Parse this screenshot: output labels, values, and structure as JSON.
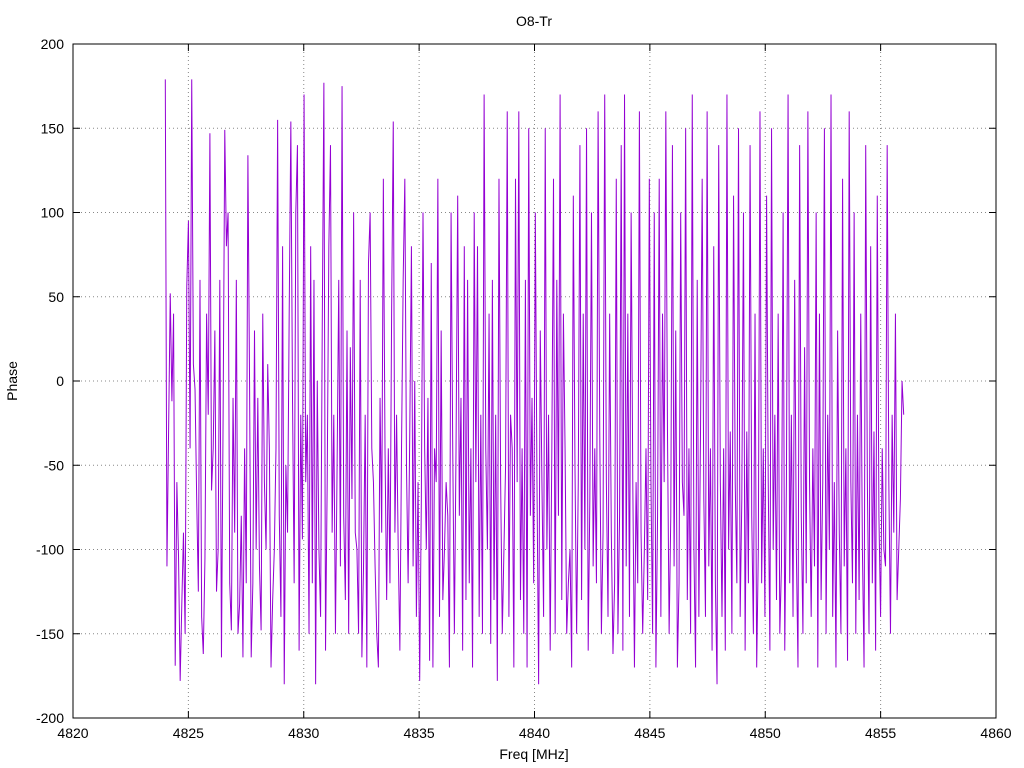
{
  "chart_data": {
    "type": "line",
    "title": "O8-Tr",
    "xlabel": "Freq [MHz]",
    "ylabel": "Phase",
    "xlim": [
      4820,
      4860
    ],
    "ylim": [
      -200,
      200
    ],
    "x_ticks": [
      4820,
      4825,
      4830,
      4835,
      4840,
      4845,
      4850,
      4855,
      4860
    ],
    "y_ticks": [
      -200,
      -150,
      -100,
      -50,
      0,
      50,
      100,
      150,
      200
    ],
    "grid": true,
    "series_color": "#9400D3",
    "series": [
      {
        "x_start": 4824.0,
        "x_end": 4856.0,
        "values": [
          179,
          -110,
          -29,
          52,
          -12,
          40,
          -169,
          -60,
          -104,
          -178,
          -132,
          -90,
          -150,
          56,
          95,
          -40,
          179,
          10,
          -5,
          -70,
          -125,
          60,
          -140,
          -162,
          -105,
          40,
          -20,
          147,
          -65,
          -40,
          30,
          -125,
          -100,
          60,
          -164,
          -20,
          149,
          80,
          100,
          -120,
          -148,
          -10,
          -90,
          60,
          -150,
          -132,
          -80,
          -164,
          -40,
          -120,
          134,
          0,
          -164,
          -120,
          30,
          -100,
          -10,
          -110,
          -148,
          40,
          -60,
          -100,
          10,
          -40,
          -170,
          -130,
          -100,
          -40,
          155,
          -80,
          -140,
          80,
          -180,
          -50,
          -90,
          40,
          154,
          -10,
          -120,
          100,
          140,
          -160,
          -20,
          -94,
          170,
          -60,
          -20,
          -150,
          80,
          -120,
          60,
          -180,
          0,
          -100,
          -140,
          30,
          177,
          -160,
          -60,
          80,
          140,
          -90,
          -20,
          -150,
          -50,
          60,
          -110,
          175,
          -80,
          -130,
          30,
          -150,
          20,
          -70,
          100,
          -90,
          -100,
          -150,
          60,
          -164,
          -110,
          -20,
          -170,
          70,
          100,
          -40,
          -60,
          -110,
          -150,
          -170,
          -10,
          -90,
          120,
          -40,
          -130,
          -40,
          -120,
          40,
          154,
          -90,
          -20,
          -100,
          -160,
          -40,
          60,
          120,
          -50,
          -120,
          -30,
          80,
          -110,
          0,
          -140,
          -60,
          -178,
          -70,
          100,
          -40,
          -100,
          -10,
          -166,
          70,
          -170,
          -40,
          -60,
          120,
          -140,
          30,
          -130,
          -100,
          -60,
          -80,
          -170,
          100,
          -40,
          -150,
          -40,
          110,
          -80,
          -10,
          -160,
          80,
          -130,
          60,
          -120,
          -40,
          -170,
          100,
          -60,
          80,
          -140,
          -20,
          -150,
          170,
          -40,
          -100,
          40,
          -156,
          60,
          -130,
          -20,
          -178,
          120,
          -60,
          -150,
          -100,
          -50,
          160,
          -140,
          -20,
          -40,
          -170,
          120,
          -60,
          160,
          -130,
          -40,
          -150,
          60,
          -170,
          150,
          -80,
          -10,
          -120,
          100,
          -60,
          -180,
          30,
          -60,
          -140,
          150,
          -100,
          -20,
          -160,
          -40,
          120,
          -150,
          60,
          -80,
          170,
          -130,
          40,
          -40,
          -150,
          -120,
          -100,
          -170,
          110,
          -50,
          -150,
          -60,
          140,
          -130,
          40,
          -100,
          150,
          -160,
          -70,
          100,
          -110,
          -40,
          -120,
          160,
          -30,
          -150,
          -90,
          170,
          -60,
          -140,
          40,
          -90,
          -162,
          -120,
          120,
          -150,
          -80,
          140,
          -160,
          170,
          -110,
          40,
          -140,
          100,
          -60,
          -170,
          -60,
          -120,
          160,
          -90,
          -150,
          -100,
          -40,
          -130,
          120,
          -60,
          -150,
          100,
          -170,
          -80,
          120,
          -140,
          40,
          -60,
          160,
          -30,
          -150,
          -80,
          140,
          -110,
          30,
          -170,
          -120,
          100,
          -60,
          -80,
          150,
          -130,
          -40,
          -150,
          170,
          -100,
          -170,
          60,
          -140,
          -30,
          120,
          -70,
          -140,
          160,
          -110,
          -40,
          -160,
          80,
          -120,
          -180,
          140,
          -60,
          -140,
          -40,
          -160,
          170,
          -100,
          -30,
          -150,
          110,
          -60,
          -120,
          150,
          -140,
          -70,
          100,
          -160,
          -30,
          -120,
          140,
          -80,
          -150,
          40,
          -170,
          -100,
          160,
          -120,
          -40,
          -140,
          110,
          -60,
          -160,
          150,
          -100,
          -20,
          -130,
          40,
          -150,
          -110,
          100,
          -160,
          -60,
          170,
          -120,
          -20,
          -140,
          60,
          -100,
          -170,
          140,
          -80,
          -150,
          20,
          -120,
          160,
          -60,
          -140,
          -40,
          -110,
          100,
          -170,
          40,
          -130,
          -60,
          150,
          -150,
          -20,
          -100,
          170,
          -140,
          -60,
          -170,
          30,
          -90,
          -150,
          120,
          -110,
          -40,
          -166,
          160,
          -60,
          -120,
          100,
          -150,
          -20,
          -130,
          40,
          -100,
          -170,
          140,
          -60,
          -150,
          80,
          -120,
          -30,
          -160,
          110,
          -80,
          -140,
          -40,
          -100,
          -110,
          140,
          -60,
          -150,
          -20,
          -90,
          40,
          -130,
          -100,
          -70,
          0,
          -20
        ]
      }
    ]
  }
}
